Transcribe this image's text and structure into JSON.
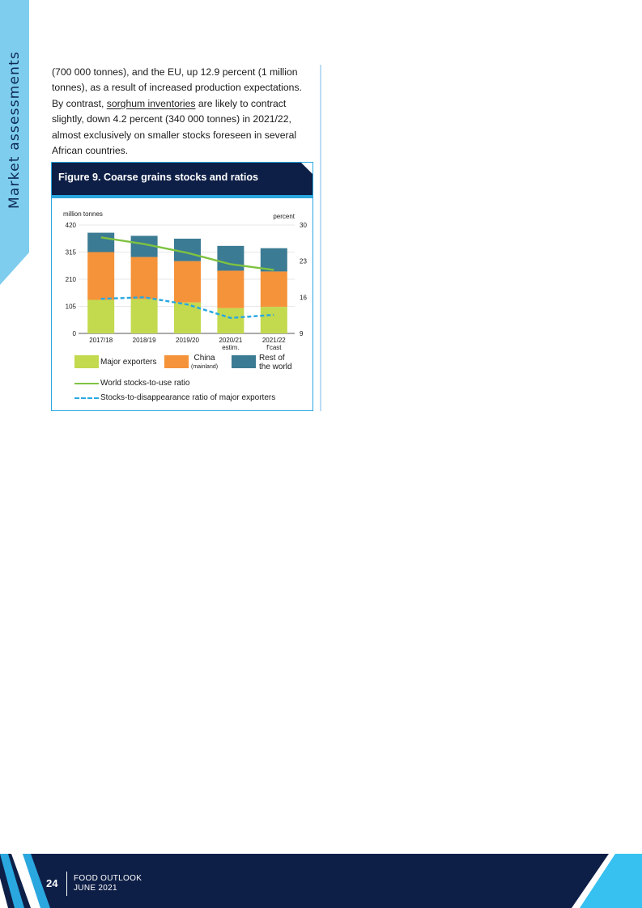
{
  "section_label": "Market assessments",
  "body": {
    "line1": "(700 000 tonnes),  and the EU, up 12.9 percent (1 million",
    "line2": "tonnes), as a result of increased production expectations.",
    "line3_pre": "By contrast,",
    "line3_link": "sorghum inventories",
    "line3_post": "are likely to contract",
    "line4": "slightly, down 4.2 percent (340 000 tonnes) in 2021/22,",
    "line5": "almost exclusively on smaller stocks foreseen in several",
    "line6": "African countries."
  },
  "figure": {
    "title": "Figure 9. Coarse grains stocks and ratios"
  },
  "chart_data": {
    "type": "bar",
    "stacked": true,
    "title": "Figure 9. Coarse grains stocks and ratios",
    "ylabel_left": "million tonnes",
    "ylabel_right": "percent",
    "ylim_left": [
      0,
      420
    ],
    "yticks_left": [
      "0",
      "105",
      "210",
      "315",
      "420"
    ],
    "ylim_right": [
      9,
      30
    ],
    "yticks_right": [
      "9",
      "16",
      "23",
      "30"
    ],
    "categories": [
      {
        "line1": "2017/18",
        "line2": ""
      },
      {
        "line1": "2018/19",
        "line2": ""
      },
      {
        "line1": "2019/20",
        "line2": ""
      },
      {
        "line1": "2020/21",
        "line2": "estim."
      },
      {
        "line1": "2021/22",
        "line2": "f'cast"
      }
    ],
    "series": [
      {
        "name": "Major exporters",
        "color": "#c3d94e",
        "values": [
          130,
          133,
          120,
          98,
          103
        ]
      },
      {
        "name": "China (mainland)",
        "color": "#f5933a",
        "values": [
          185,
          163,
          160,
          145,
          137
        ]
      },
      {
        "name": "Rest of the world",
        "color": "#3b7b93",
        "values": [
          75,
          82,
          87,
          96,
          90
        ]
      }
    ],
    "lines": [
      {
        "name": "World stocks-to-use ratio",
        "color": "#7fc241",
        "style": "solid",
        "axis": "right",
        "values": [
          27.6,
          26.3,
          24.6,
          22.4,
          21.3
        ]
      },
      {
        "name": "Stocks-to-disappearance ratio of major exporters",
        "color": "#2aa7df",
        "style": "dashed",
        "axis": "right",
        "values": [
          15.7,
          16.0,
          14.6,
          12.0,
          12.6
        ]
      }
    ],
    "legend": {
      "major": "Major exporters",
      "china": "China",
      "china_sub": "(mainland)",
      "rest1": "Rest of",
      "rest2": "the world",
      "line_world": "World stocks-to-use ratio",
      "line_major": "Stocks-to-disappearance ratio of major exporters"
    },
    "grid": true
  },
  "footer": {
    "page_number": "24",
    "publication": "FOOD OUTLOOK",
    "date": "JUNE 2021"
  }
}
